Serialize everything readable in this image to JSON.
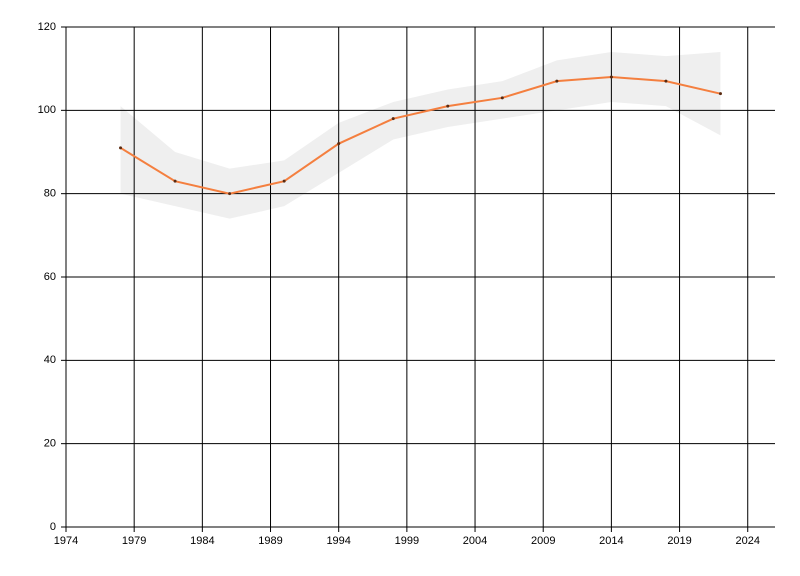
{
  "chart_data": {
    "type": "line",
    "x": [
      1978,
      1982,
      1986,
      1990,
      1994,
      1998,
      2002,
      2006,
      2010,
      2014,
      2018,
      2022
    ],
    "series": [
      {
        "color": "#f47f3f",
        "values": [
          91,
          83,
          80,
          83,
          92,
          98,
          101,
          103,
          107,
          108,
          107,
          104
        ]
      }
    ],
    "band": {
      "color": "#efefef",
      "upper": [
        101,
        90,
        86,
        88,
        97,
        102,
        105,
        107,
        112,
        114,
        113,
        114
      ],
      "lower": [
        80,
        77,
        74,
        77,
        85,
        93,
        96,
        98,
        100,
        102,
        101,
        94
      ]
    },
    "xlim": [
      1974,
      2026
    ],
    "xticks": [
      1974,
      1979,
      1984,
      1989,
      1994,
      1999,
      2004,
      2009,
      2014,
      2019,
      2024
    ],
    "ylim": [
      0,
      120
    ],
    "yticks": [
      0,
      20,
      40,
      60,
      80,
      100,
      120
    ],
    "grid": true
  }
}
